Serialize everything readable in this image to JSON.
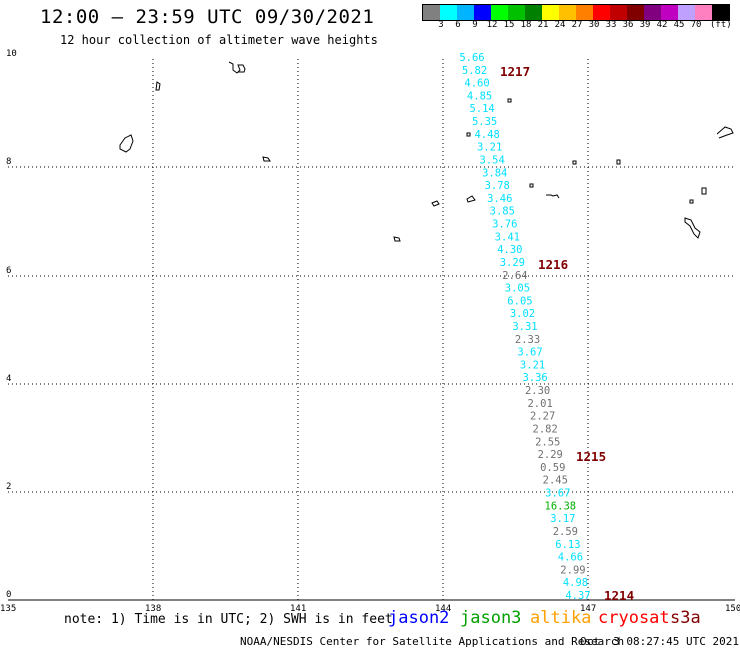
{
  "header": {
    "title": "12:00 – 23:59 UTC 09/30/2021",
    "subtitle": "12 hour collection of altimeter wave heights"
  },
  "legend": {
    "colors": [
      "#808080",
      "#00ffff",
      "#00b4ff",
      "#0000ff",
      "#00ff00",
      "#00c000",
      "#008000",
      "#ffff00",
      "#ffc000",
      "#ff8000",
      "#ff0000",
      "#c00000",
      "#800000",
      "#800080",
      "#c000c0",
      "#c0a0ff",
      "#ff80c0",
      "#000000"
    ],
    "labels": [
      "3",
      "6",
      "9",
      "12",
      "15",
      "18",
      "21",
      "24",
      "27",
      "30",
      "33",
      "36",
      "39",
      "42",
      "45",
      "70",
      "(ft)"
    ]
  },
  "axes": {
    "x_ticks": [
      "135",
      "138",
      "141",
      "144",
      "147",
      "150"
    ],
    "y_ticks": [
      "0",
      "2",
      "4",
      "6",
      "8",
      "10"
    ]
  },
  "passes": [
    "1217",
    "1216",
    "1215",
    "1214"
  ],
  "swh_values": [
    {
      "v": "5.66",
      "c": "#00e0ff"
    },
    {
      "v": "5.82",
      "c": "#00e0ff"
    },
    {
      "v": "4.60",
      "c": "#00e0ff"
    },
    {
      "v": "4.85",
      "c": "#00e0ff"
    },
    {
      "v": "5.14",
      "c": "#00e0ff"
    },
    {
      "v": "5.35",
      "c": "#00e0ff"
    },
    {
      "v": "4.48",
      "c": "#00e0ff"
    },
    {
      "v": "3.21",
      "c": "#00e0ff"
    },
    {
      "v": "3.54",
      "c": "#00e0ff"
    },
    {
      "v": "3.84",
      "c": "#00e0ff"
    },
    {
      "v": "3.78",
      "c": "#00e0ff"
    },
    {
      "v": "3.46",
      "c": "#00e0ff"
    },
    {
      "v": "3.85",
      "c": "#00e0ff"
    },
    {
      "v": "3.76",
      "c": "#00e0ff"
    },
    {
      "v": "3.41",
      "c": "#00e0ff"
    },
    {
      "v": "4.30",
      "c": "#00e0ff"
    },
    {
      "v": "3.29",
      "c": "#00e0ff"
    },
    {
      "v": "2.64",
      "c": "#707070"
    },
    {
      "v": "3.05",
      "c": "#00e0ff"
    },
    {
      "v": "6.05",
      "c": "#00e0ff"
    },
    {
      "v": "3.02",
      "c": "#00e0ff"
    },
    {
      "v": "3.31",
      "c": "#00e0ff"
    },
    {
      "v": "2.33",
      "c": "#707070"
    },
    {
      "v": "3.67",
      "c": "#00e0ff"
    },
    {
      "v": "3.21",
      "c": "#00e0ff"
    },
    {
      "v": "3.36",
      "c": "#00e0ff"
    },
    {
      "v": "2.30",
      "c": "#707070"
    },
    {
      "v": "2.01",
      "c": "#707070"
    },
    {
      "v": "2.27",
      "c": "#707070"
    },
    {
      "v": "2.82",
      "c": "#707070"
    },
    {
      "v": "2.55",
      "c": "#707070"
    },
    {
      "v": "2.29",
      "c": "#707070"
    },
    {
      "v": "0.59",
      "c": "#707070"
    },
    {
      "v": "2.45",
      "c": "#707070"
    },
    {
      "v": "3.67",
      "c": "#00e0ff"
    },
    {
      "v": "16.38",
      "c": "#00b000"
    },
    {
      "v": "3.17",
      "c": "#00e0ff"
    },
    {
      "v": "2.59",
      "c": "#707070"
    },
    {
      "v": "6.13",
      "c": "#00e0ff"
    },
    {
      "v": "4.66",
      "c": "#00e0ff"
    },
    {
      "v": "2.99",
      "c": "#707070"
    },
    {
      "v": "4.98",
      "c": "#00e0ff"
    },
    {
      "v": "4.37",
      "c": "#00e0ff"
    }
  ],
  "pass_color": "#800000",
  "footer": {
    "note": "note: 1) Time is in UTC; 2) SWH is in feet",
    "satellites": [
      {
        "name": "jason2",
        "color": "#0000ff"
      },
      {
        "name": "jason3",
        "color": "#00a000"
      },
      {
        "name": "altika",
        "color": "#ffa000"
      },
      {
        "name": "cryosat",
        "color": "#ff0000"
      },
      {
        "name": "s3a",
        "color": "#800000"
      }
    ],
    "credit": "NOAA/NESDIS Center for Satellite Applications and Research",
    "timestamp": "Oct  3 08:27:45 UTC 2021"
  }
}
